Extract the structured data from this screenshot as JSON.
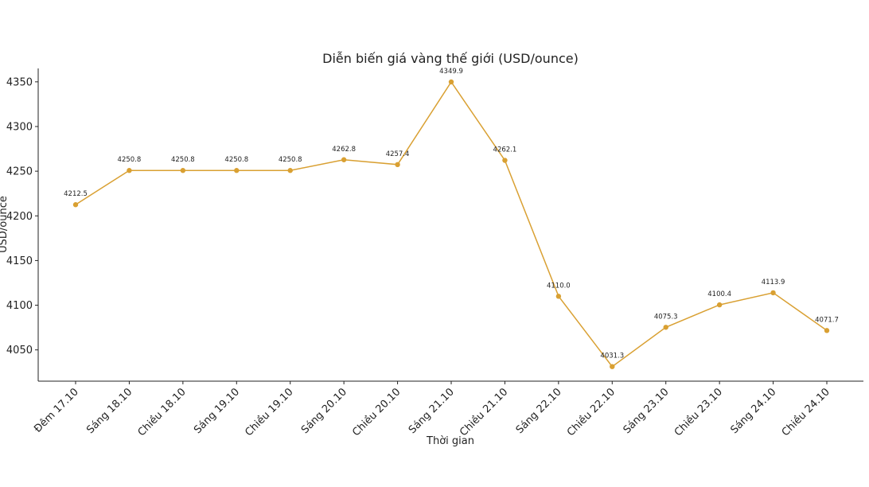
{
  "chart_data": {
    "type": "line",
    "title": "Diễn biến giá vàng thế giới (USD/ounce)",
    "xlabel": "Thời gian",
    "ylabel": "USD/ounce",
    "categories": [
      "Đêm 17.10",
      "Sáng 18.10",
      "Chiều 18.10",
      "Sáng 19.10",
      "Chiều 19.10",
      "Sáng 20.10",
      "Chiều 20.10",
      "Sáng 21.10",
      "Chiều 21.10",
      "Sáng 22.10",
      "Chiều 22.10",
      "Sáng 23.10",
      "Chiều 23.10",
      "Sáng 24.10",
      "Chiều 24.10"
    ],
    "series": [
      {
        "values": [
          4212.5,
          4250.8,
          4250.8,
          4250.8,
          4250.8,
          4262.8,
          4257.4,
          4349.9,
          4262.1,
          4110.0,
          4031.3,
          4075.3,
          4100.4,
          4113.9,
          4071.7
        ],
        "labels": [
          "4212.5",
          "4250.8",
          "4250.8",
          "4250.8",
          "4250.8",
          "4262.8",
          "4257.4",
          "4349.9",
          "4262.1",
          "4110.0",
          "4031.3",
          "4075.3",
          "4100.4",
          "4113.9",
          "4071.7"
        ],
        "color": "#d9a032"
      }
    ],
    "yticks": [
      "4050",
      "4100",
      "4150",
      "4200",
      "4250",
      "4300",
      "4350"
    ],
    "ylim": [
      4015,
      4365
    ],
    "grid": false,
    "legend": "none"
  }
}
